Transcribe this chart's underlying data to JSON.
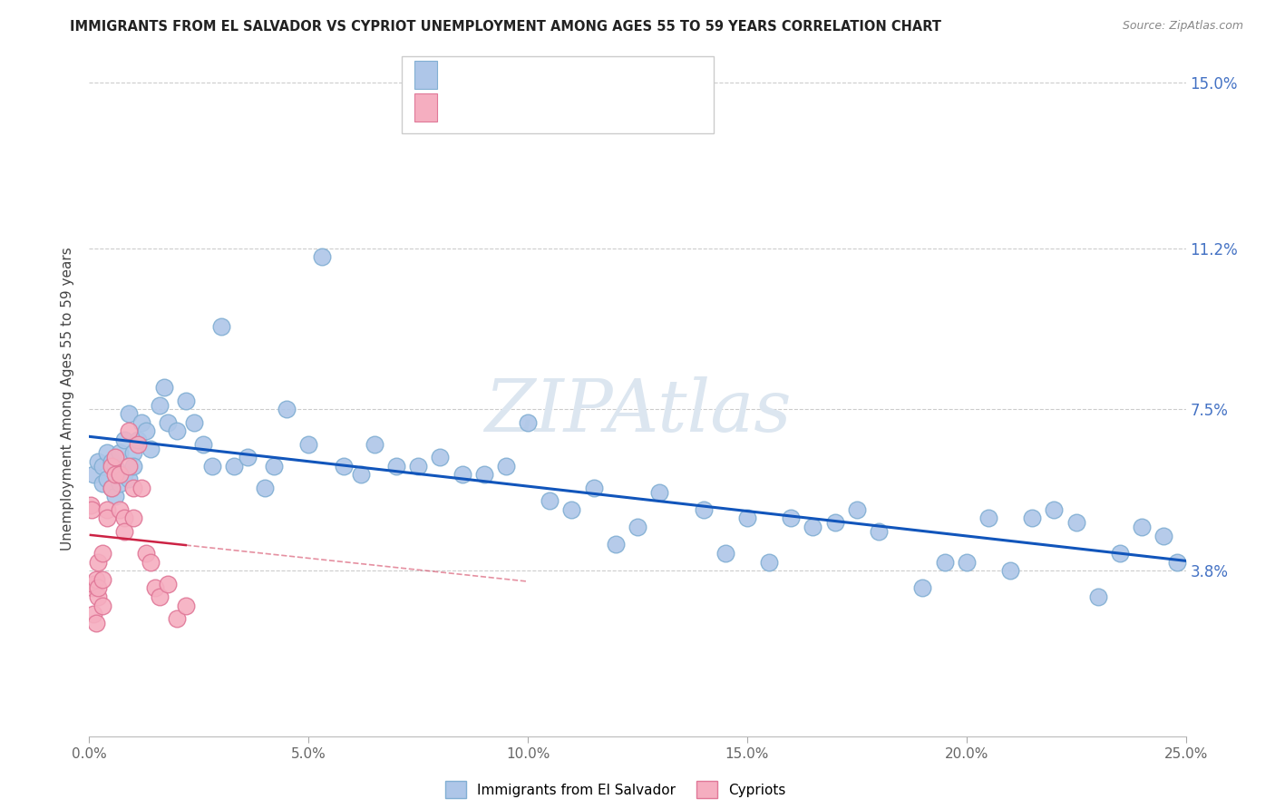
{
  "title": "IMMIGRANTS FROM EL SALVADOR VS CYPRIOT UNEMPLOYMENT AMONG AGES 55 TO 59 YEARS CORRELATION CHART",
  "source": "Source: ZipAtlas.com",
  "ylabel": "Unemployment Among Ages 55 to 59 years",
  "xlim": [
    0.0,
    0.25
  ],
  "ylim": [
    0.0,
    0.155
  ],
  "yticks": [
    0.038,
    0.075,
    0.112,
    0.15
  ],
  "ytick_labels": [
    "3.8%",
    "7.5%",
    "11.2%",
    "15.0%"
  ],
  "xticks": [
    0.0,
    0.05,
    0.1,
    0.15,
    0.2,
    0.25
  ],
  "xtick_labels": [
    "0.0%",
    "5.0%",
    "10.0%",
    "15.0%",
    "20.0%",
    "25.0%"
  ],
  "series1_color": "#aec6e8",
  "series1_edge_color": "#82afd3",
  "series2_color": "#f5aec0",
  "series2_edge_color": "#e07898",
  "trendline1_color": "#1155bb",
  "trendline2_color": "#cc2244",
  "watermark": "ZIPAtlas",
  "watermark_color": "#dce6f0",
  "series1_x": [
    0.001,
    0.002,
    0.003,
    0.003,
    0.004,
    0.004,
    0.005,
    0.005,
    0.006,
    0.006,
    0.007,
    0.007,
    0.008,
    0.008,
    0.009,
    0.009,
    0.01,
    0.01,
    0.011,
    0.012,
    0.013,
    0.014,
    0.016,
    0.017,
    0.018,
    0.02,
    0.022,
    0.024,
    0.026,
    0.028,
    0.03,
    0.033,
    0.036,
    0.04,
    0.042,
    0.045,
    0.05,
    0.053,
    0.058,
    0.062,
    0.065,
    0.07,
    0.075,
    0.08,
    0.085,
    0.09,
    0.095,
    0.1,
    0.105,
    0.11,
    0.115,
    0.12,
    0.125,
    0.13,
    0.14,
    0.145,
    0.15,
    0.155,
    0.16,
    0.165,
    0.17,
    0.175,
    0.18,
    0.19,
    0.195,
    0.2,
    0.205,
    0.21,
    0.215,
    0.22,
    0.225,
    0.23,
    0.235,
    0.24,
    0.245,
    0.248
  ],
  "series1_y": [
    0.06,
    0.063,
    0.058,
    0.062,
    0.059,
    0.065,
    0.057,
    0.063,
    0.055,
    0.062,
    0.058,
    0.065,
    0.06,
    0.068,
    0.059,
    0.074,
    0.065,
    0.062,
    0.068,
    0.072,
    0.07,
    0.066,
    0.076,
    0.08,
    0.072,
    0.07,
    0.077,
    0.072,
    0.067,
    0.062,
    0.094,
    0.062,
    0.064,
    0.057,
    0.062,
    0.075,
    0.067,
    0.11,
    0.062,
    0.06,
    0.067,
    0.062,
    0.062,
    0.064,
    0.06,
    0.06,
    0.062,
    0.072,
    0.054,
    0.052,
    0.057,
    0.044,
    0.048,
    0.056,
    0.052,
    0.042,
    0.05,
    0.04,
    0.05,
    0.048,
    0.049,
    0.052,
    0.047,
    0.034,
    0.04,
    0.04,
    0.05,
    0.038,
    0.05,
    0.052,
    0.049,
    0.032,
    0.042,
    0.048,
    0.046,
    0.04
  ],
  "series2_x": [
    0.0003,
    0.0005,
    0.0008,
    0.001,
    0.001,
    0.0015,
    0.0015,
    0.002,
    0.002,
    0.002,
    0.003,
    0.003,
    0.003,
    0.004,
    0.004,
    0.005,
    0.005,
    0.006,
    0.006,
    0.007,
    0.007,
    0.008,
    0.008,
    0.009,
    0.009,
    0.01,
    0.01,
    0.011,
    0.012,
    0.013,
    0.014,
    0.015,
    0.016,
    0.018,
    0.02,
    0.022
  ],
  "series2_y": [
    0.053,
    0.052,
    0.034,
    0.035,
    0.028,
    0.036,
    0.026,
    0.04,
    0.032,
    0.034,
    0.042,
    0.036,
    0.03,
    0.052,
    0.05,
    0.062,
    0.057,
    0.064,
    0.06,
    0.06,
    0.052,
    0.05,
    0.047,
    0.07,
    0.062,
    0.057,
    0.05,
    0.067,
    0.057,
    0.042,
    0.04,
    0.034,
    0.032,
    0.035,
    0.027,
    0.03
  ]
}
